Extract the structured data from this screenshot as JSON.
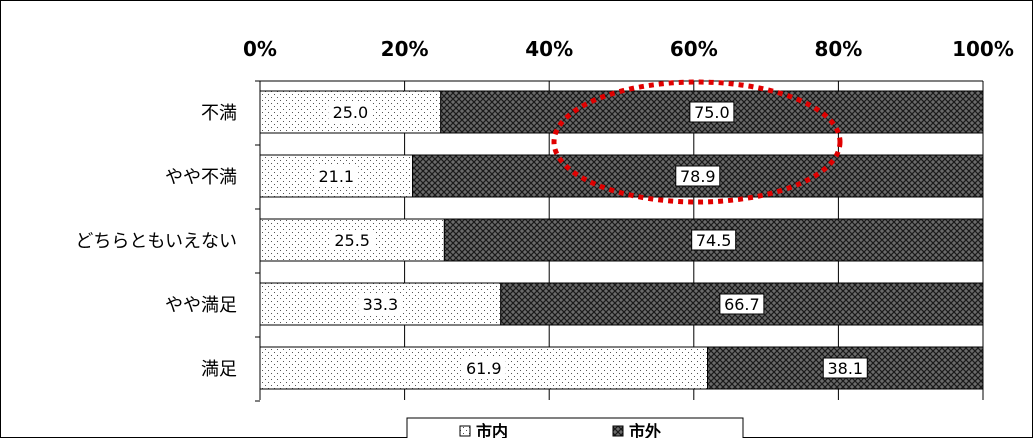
{
  "chart_data": {
    "type": "bar",
    "orientation": "horizontal",
    "stacked": true,
    "categories": [
      "不満",
      "やや不満",
      "どちらともいえない",
      "やや満足",
      "満足"
    ],
    "series": [
      {
        "name": "市内",
        "values": [
          25.0,
          21.1,
          25.5,
          33.3,
          61.9
        ],
        "pattern": "dots",
        "color": "#ffffff"
      },
      {
        "name": "市外",
        "values": [
          75.0,
          78.9,
          74.5,
          66.7,
          38.1
        ],
        "pattern": "crosshatch",
        "color": "#555555"
      }
    ],
    "data_labels": {
      "series_0": [
        "25.0",
        "21.1",
        "25.5",
        "33.3",
        "61.9"
      ],
      "series_1": [
        "75.0",
        "78.9",
        "74.5",
        "66.7",
        "38.1"
      ]
    },
    "x_ticks": [
      "0%",
      "20%",
      "40%",
      "60%",
      "80%",
      "100%"
    ],
    "xlim": [
      0,
      100
    ],
    "x_axis_position": "top",
    "grid": true,
    "legend": {
      "position": "bottom",
      "labels": [
        "市内",
        "市外"
      ]
    },
    "annotation": {
      "type": "dashed-ellipse",
      "color": "#e00000",
      "highlights": [
        "不満:市外",
        "やや不満:市外"
      ]
    }
  }
}
